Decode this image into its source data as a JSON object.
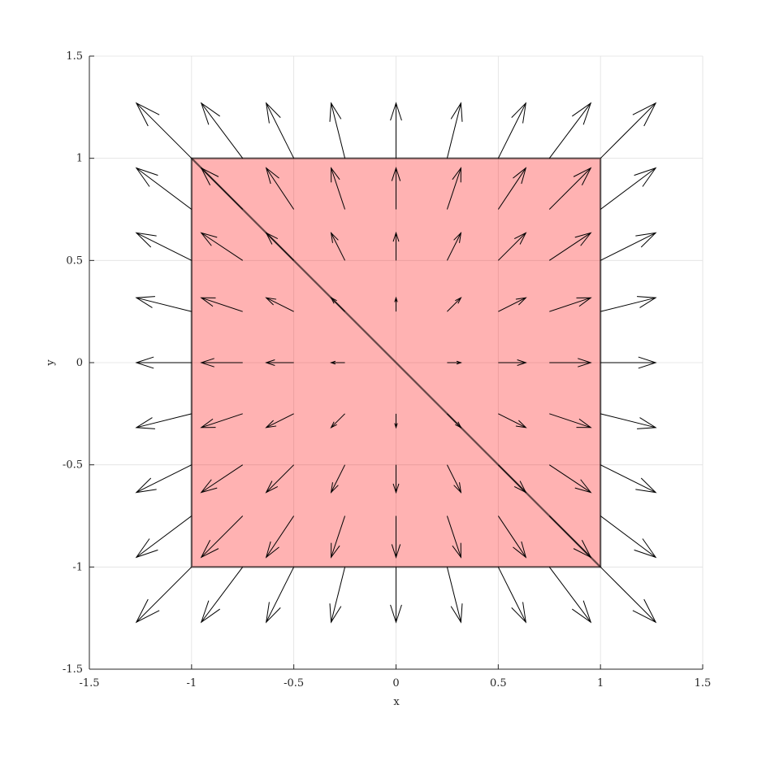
{
  "chart_data": {
    "type": "quiver",
    "title": "",
    "xlabel": "x",
    "ylabel": "y",
    "xlim": [
      -1.5,
      1.5
    ],
    "ylim": [
      -1.5,
      1.5
    ],
    "xticks": [
      -1.5,
      -1,
      -0.5,
      0,
      0.5,
      1,
      1.5
    ],
    "yticks": [
      -1.5,
      -1,
      -0.5,
      0,
      0.5,
      1,
      1.5
    ],
    "xtick_labels": [
      "-1.5",
      "-1",
      "-0.5",
      "0",
      "0.5",
      "1",
      "1.5"
    ],
    "ytick_labels": [
      "-1.5",
      "-1",
      "-0.5",
      "0",
      "0.5",
      "1",
      "1.5"
    ],
    "grid": true,
    "field": {
      "description": "radial field, vector = 0.27 * (x, y) at each grid point",
      "grid_x": [
        -1,
        -0.75,
        -0.5,
        -0.25,
        0,
        0.25,
        0.5,
        0.75,
        1
      ],
      "grid_y": [
        -1,
        -0.75,
        -0.5,
        -0.25,
        0,
        0.25,
        0.5,
        0.75,
        1
      ],
      "scale": 0.27
    },
    "patch": {
      "polygon": [
        [
          -1,
          -1
        ],
        [
          1,
          -1
        ],
        [
          1,
          1
        ],
        [
          -1,
          1
        ]
      ],
      "fill": "#ff0000",
      "fill_opacity": 0.3,
      "edge": "#000000"
    },
    "diagonal": {
      "from": [
        -1,
        1
      ],
      "to": [
        1,
        -1
      ]
    },
    "colors": {
      "arrow": "#000000",
      "grid": "#e0e0e0",
      "axis": "#262626"
    }
  }
}
